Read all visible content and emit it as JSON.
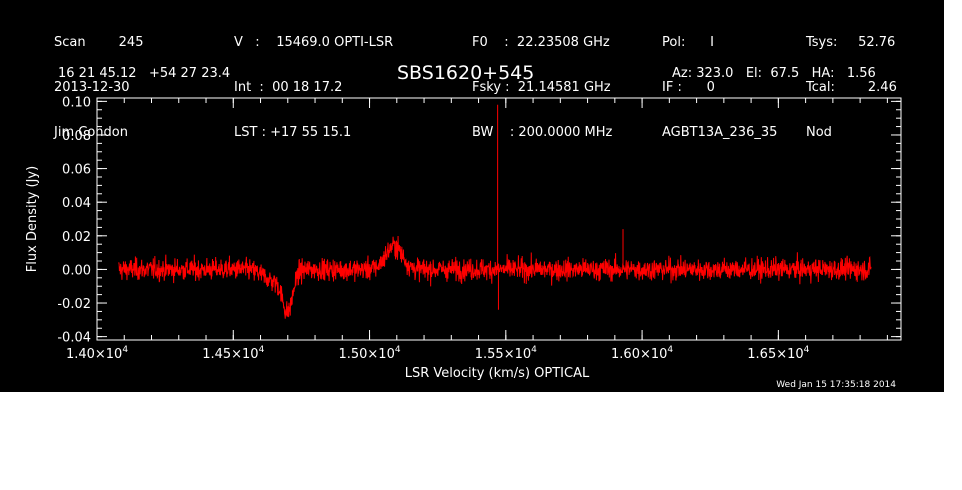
{
  "header": {
    "col1": [
      "Scan        245",
      "2013-12-30",
      "Jim Condon"
    ],
    "col2": [
      "V   :    15469.0 OPTI-LSR",
      "Int  :  00 18 17.2",
      "LST : +17 55 15.1"
    ],
    "col3": [
      "F0    :  22.23508 GHz",
      "Fsky :  21.14581 GHz",
      "BW    : 200.0000 MHz"
    ],
    "col4": [
      "Pol:      I",
      "IF :      0",
      "AGBT13A_236_35"
    ],
    "col5": [
      "Tsys:     52.76",
      "Tcal:        2.46",
      "Nod"
    ],
    "coords": "16 21 45.12   +54 27 23.4",
    "source": "SBS1620+545",
    "pointing": "Az: 323.0   El:  67.5   HA:   1.56"
  },
  "footer": {
    "timestamp": "Wed Jan 15 17:35:18 2014"
  },
  "chart_data": {
    "type": "line",
    "xlabel": "LSR Velocity (km/s) OPTICAL",
    "ylabel": "Flux Density (Jy)",
    "xlim": [
      14000,
      16950
    ],
    "ylim": [
      -0.042,
      0.102
    ],
    "xticks": [
      {
        "value": 14000,
        "mant": "1.40×10",
        "exp": "4"
      },
      {
        "value": 14500,
        "mant": "1.45×10",
        "exp": "4"
      },
      {
        "value": 15000,
        "mant": "1.50×10",
        "exp": "4"
      },
      {
        "value": 15500,
        "mant": "1.55×10",
        "exp": "4"
      },
      {
        "value": 16000,
        "mant": "1.60×10",
        "exp": "4"
      },
      {
        "value": 16500,
        "mant": "1.65×10",
        "exp": "4"
      }
    ],
    "yticks": [
      {
        "value": -0.04,
        "label": "-0.04"
      },
      {
        "value": -0.02,
        "label": "-0.02"
      },
      {
        "value": 0.0,
        "label": "0.00"
      },
      {
        "value": 0.02,
        "label": "0.02"
      },
      {
        "value": 0.04,
        "label": "0.04"
      },
      {
        "value": 0.06,
        "label": "0.06"
      },
      {
        "value": 0.08,
        "label": "0.08"
      },
      {
        "value": 0.1,
        "label": "0.10"
      }
    ],
    "series": [
      {
        "color": "#ff0000",
        "x_range": [
          14080,
          16840
        ],
        "noise_rms": 0.0045,
        "features": [
          {
            "x": 14700,
            "y": -0.022,
            "width": 18
          },
          {
            "x": 14655,
            "y": -0.007,
            "width": 40
          },
          {
            "x": 15090,
            "y": 0.014,
            "width": 30
          },
          {
            "x": 15470,
            "y": 0.098,
            "width": 1
          },
          {
            "x": 15473,
            "y": -0.024,
            "width": 1
          },
          {
            "x": 15930,
            "y": 0.024,
            "width": 1
          }
        ]
      }
    ]
  }
}
